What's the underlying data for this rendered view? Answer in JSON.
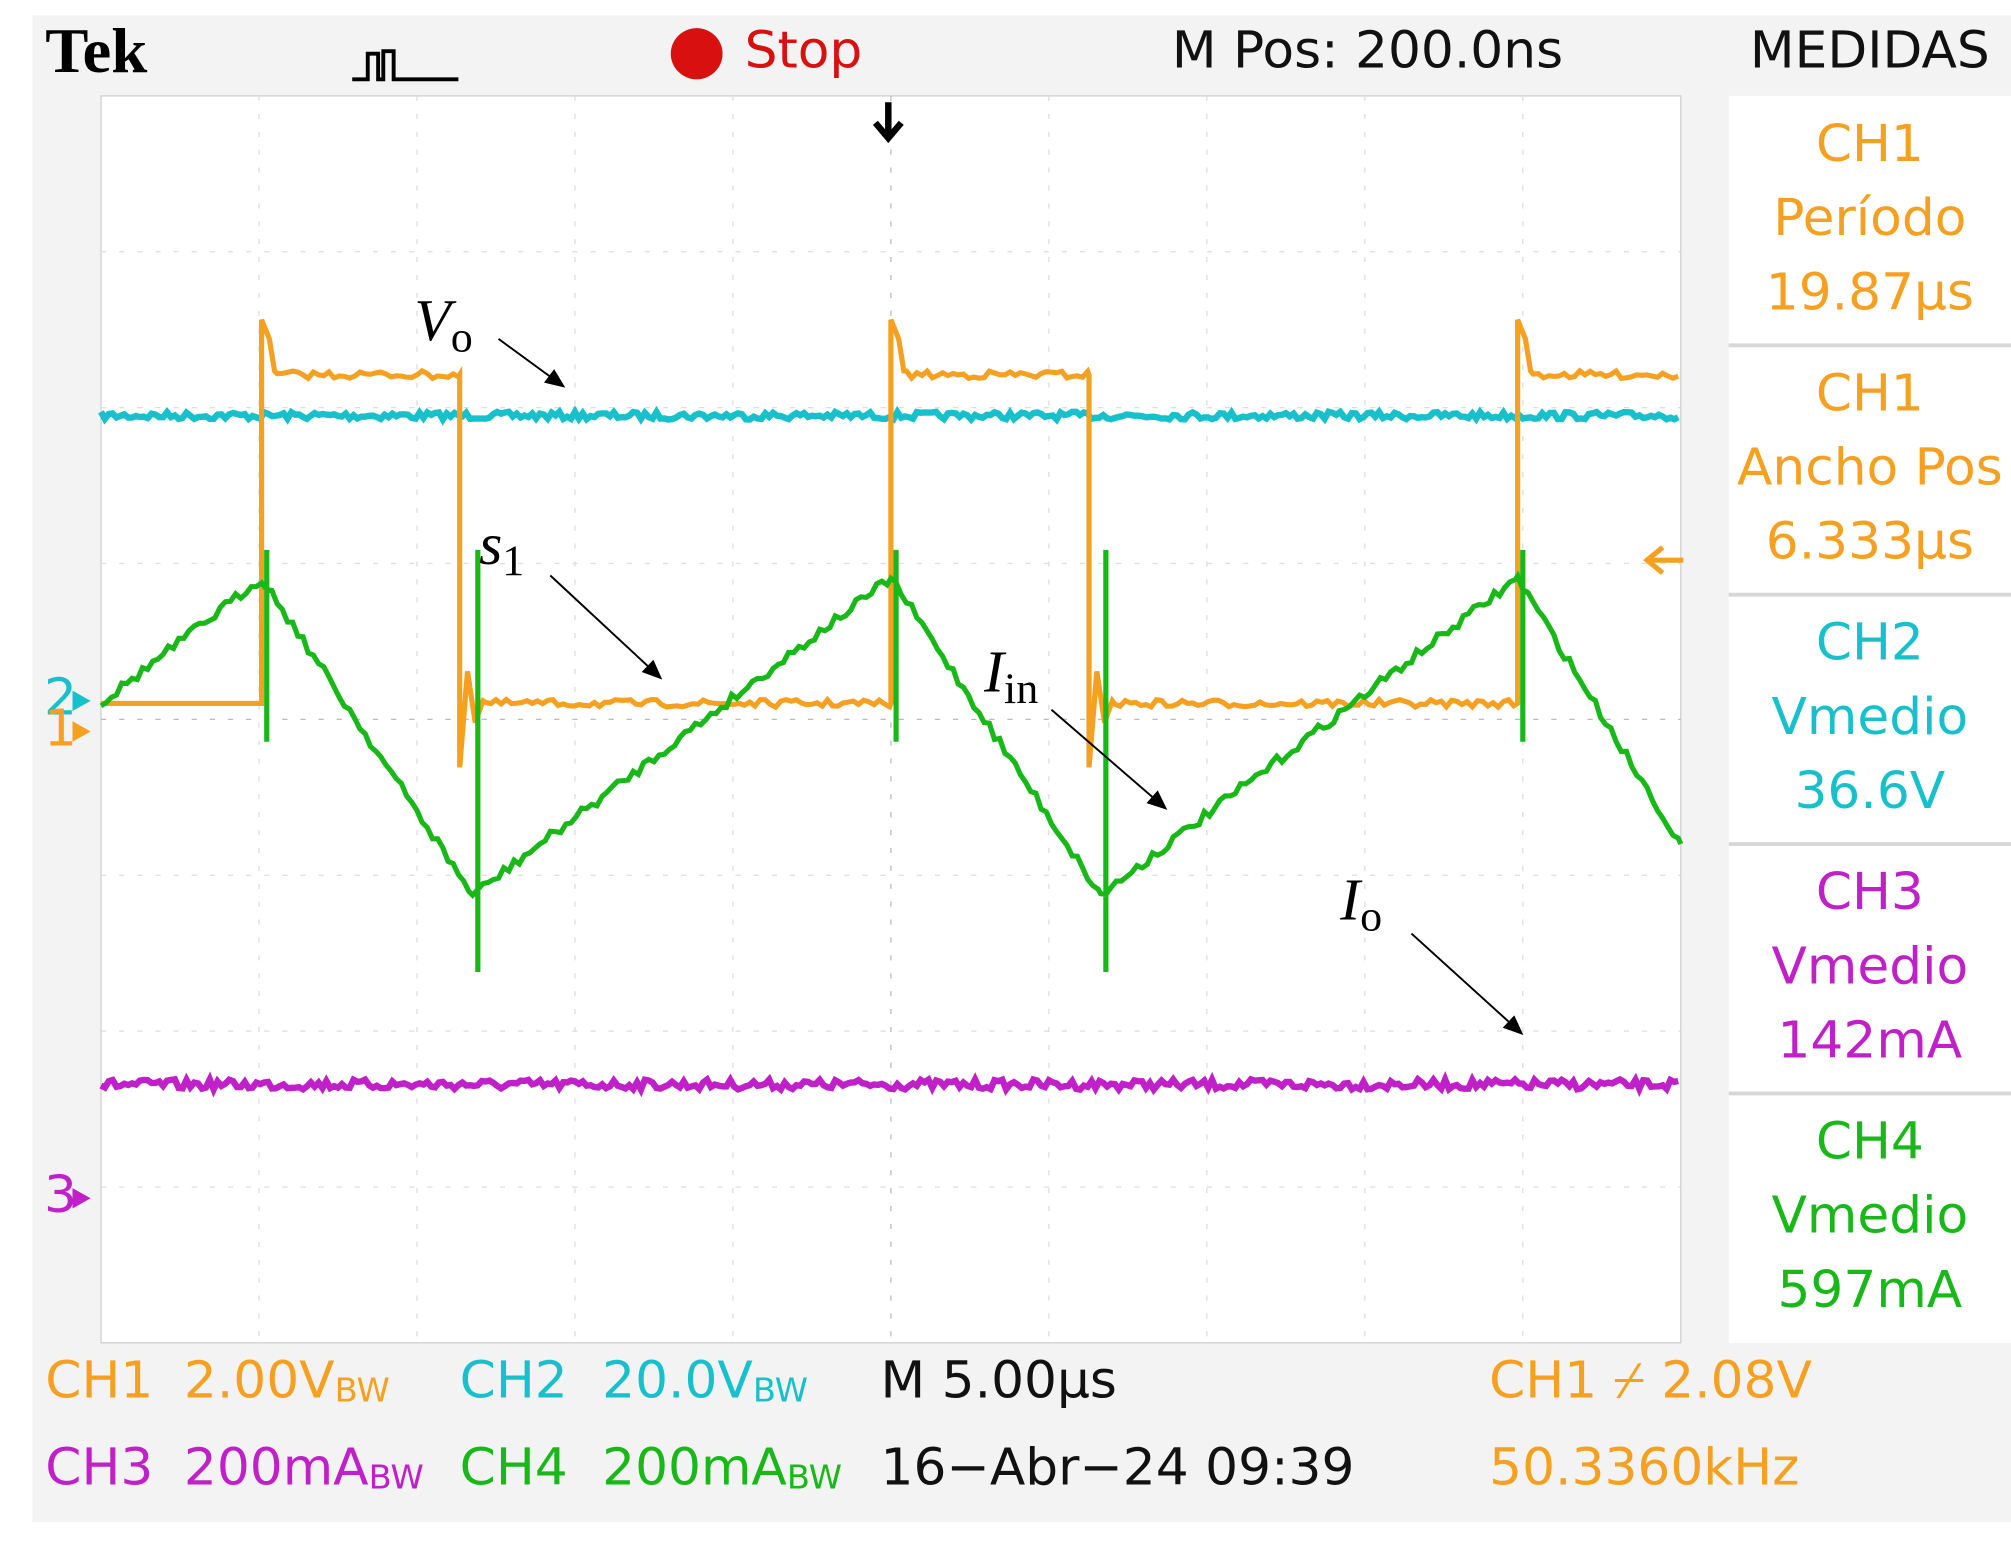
{
  "header": {
    "brand": "Tek",
    "status": "Stop",
    "position": "M Pos: 200.0ns",
    "panel_title": "MEDIDAS"
  },
  "measurements": [
    {
      "channel": "CH1",
      "name": "Período",
      "value": "19.87µs"
    },
    {
      "channel": "CH1",
      "name": "Ancho Pos",
      "value": "6.333µs"
    },
    {
      "channel": "CH2",
      "name": "Vmedio",
      "value": "36.6V"
    },
    {
      "channel": "CH3",
      "name": "Vmedio",
      "value": "142mA"
    },
    {
      "channel": "CH4",
      "name": "Vmedio",
      "value": "597mA"
    }
  ],
  "channel_markers": [
    "2",
    "1",
    "3"
  ],
  "annotations": [
    {
      "symbol": "V",
      "subscript": "o"
    },
    {
      "symbol": "s",
      "subscript": "1"
    },
    {
      "symbol": "I",
      "subscript": "in"
    },
    {
      "symbol": "I",
      "subscript": "o"
    }
  ],
  "footer": {
    "channels": [
      {
        "label": "CH1",
        "scale": "2.00V",
        "bw": "BW"
      },
      {
        "label": "CH2",
        "scale": "20.0V",
        "bw": "BW"
      },
      {
        "label": "CH3",
        "scale": "200mA",
        "bw": "BW"
      },
      {
        "label": "CH4",
        "scale": "200mA",
        "bw": "BW"
      }
    ],
    "timebase": "M 5.00µs",
    "date": "16−Abr−24 09:39",
    "trigger": "CH1 ⌿ 2.08V",
    "frequency": "50.3360kHz"
  }
}
